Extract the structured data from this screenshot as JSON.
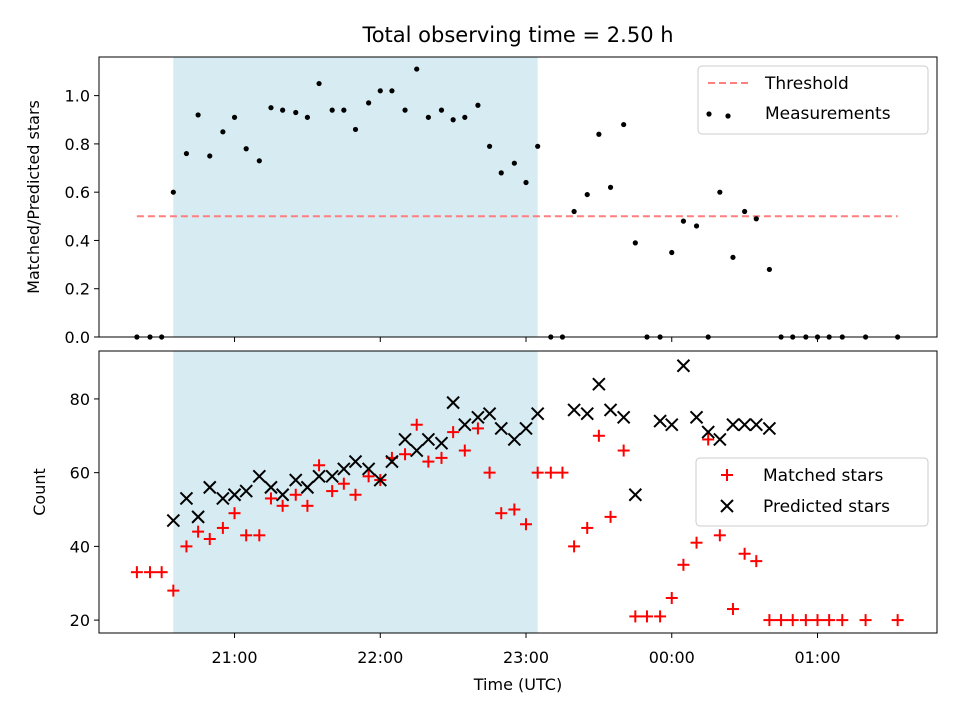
{
  "chart_data": [
    {
      "type": "scatter",
      "title": "Total observing time = 2.50 h",
      "ylabel": "Matched/Predicted stars",
      "xlabel": "",
      "ylim": [
        0,
        1.16
      ],
      "yticks": [
        0.0,
        0.2,
        0.4,
        0.6,
        0.8,
        1.0
      ],
      "ytick_labels": [
        "0.0",
        "0.2",
        "0.4",
        "0.6",
        "0.8",
        "1.0"
      ],
      "observing_window": {
        "start": 20.58,
        "end": 23.08,
        "color": "#add8e6"
      },
      "legend_position": "top-right",
      "threshold": {
        "name": "Threshold",
        "value": 0.5,
        "x_start": 20.33,
        "x_end": 25.55,
        "color": "#ff7f7f"
      },
      "series": [
        {
          "name": "Measurements",
          "color": "#000000",
          "x": [
            20.33,
            20.42,
            20.5,
            20.58,
            20.67,
            20.75,
            20.83,
            20.92,
            21.0,
            21.08,
            21.17,
            21.25,
            21.33,
            21.42,
            21.5,
            21.58,
            21.67,
            21.75,
            21.83,
            21.92,
            22.0,
            22.08,
            22.17,
            22.25,
            22.33,
            22.42,
            22.5,
            22.58,
            22.67,
            22.75,
            22.83,
            22.92,
            23.0,
            23.08,
            23.17,
            23.25,
            23.33,
            23.42,
            23.5,
            23.58,
            23.67,
            23.75,
            23.83,
            23.92,
            24.0,
            24.08,
            24.17,
            24.25,
            24.33,
            24.42,
            24.5,
            24.58,
            24.67,
            24.75,
            24.83,
            24.92,
            25.0,
            25.08,
            25.17,
            25.33,
            25.55
          ],
          "y": [
            0.0,
            0.0,
            0.0,
            0.6,
            0.76,
            0.92,
            0.75,
            0.85,
            0.91,
            0.78,
            0.73,
            0.95,
            0.94,
            0.93,
            0.91,
            1.05,
            0.94,
            0.94,
            0.86,
            0.97,
            1.02,
            1.02,
            0.94,
            1.11,
            0.91,
            0.94,
            0.9,
            0.91,
            0.96,
            0.79,
            0.68,
            0.72,
            0.64,
            0.79,
            0.0,
            0.0,
            0.52,
            0.59,
            0.84,
            0.62,
            0.88,
            0.39,
            0.0,
            0.0,
            0.35,
            0.48,
            0.46,
            0.0,
            0.6,
            0.33,
            0.52,
            0.49,
            0.28,
            0.0,
            0.0,
            0.0,
            0.0,
            0.0,
            0.0,
            0.0,
            0.0
          ]
        }
      ]
    },
    {
      "type": "scatter",
      "title": "",
      "ylabel": "Count",
      "xlabel": "Time (UTC)",
      "ylim": [
        16.5,
        93
      ],
      "yticks": [
        20,
        40,
        60,
        80
      ],
      "ytick_labels": [
        "20",
        "40",
        "60",
        "80"
      ],
      "xlim": [
        20.07,
        25.82
      ],
      "xticks": [
        21,
        22,
        23,
        24,
        25
      ],
      "xtick_labels": [
        "21:00",
        "22:00",
        "23:00",
        "00:00",
        "01:00"
      ],
      "observing_window": {
        "start": 20.58,
        "end": 23.08,
        "color": "#add8e6"
      },
      "legend_position": "center-right",
      "series": [
        {
          "name": "Matched stars",
          "color": "#ff0000",
          "marker": "+",
          "x": [
            20.33,
            20.42,
            20.5,
            20.58,
            20.67,
            20.75,
            20.83,
            20.92,
            21.0,
            21.08,
            21.17,
            21.25,
            21.33,
            21.42,
            21.5,
            21.58,
            21.67,
            21.75,
            21.83,
            21.92,
            22.0,
            22.08,
            22.17,
            22.25,
            22.33,
            22.42,
            22.5,
            22.58,
            22.67,
            22.75,
            22.83,
            22.92,
            23.0,
            23.08,
            23.17,
            23.25,
            23.33,
            23.42,
            23.5,
            23.58,
            23.67,
            23.75,
            23.83,
            23.92,
            24.0,
            24.08,
            24.17,
            24.25,
            24.33,
            24.42,
            24.5,
            24.58,
            24.67,
            24.75,
            24.83,
            24.92,
            25.0,
            25.08,
            25.17,
            25.33,
            25.55
          ],
          "y": [
            33,
            33,
            33,
            28,
            40,
            44,
            42,
            45,
            49,
            43,
            43,
            53,
            51,
            54,
            51,
            62,
            55,
            57,
            54,
            59,
            58,
            64,
            65,
            73,
            63,
            64,
            71,
            66,
            72,
            60,
            49,
            50,
            46,
            60,
            60,
            60,
            40,
            45,
            70,
            48,
            66,
            21,
            21,
            21,
            26,
            35,
            41,
            69,
            43,
            23,
            38,
            36,
            20,
            20,
            20,
            20,
            20,
            20,
            20,
            20,
            20
          ]
        },
        {
          "name": "Predicted stars",
          "color": "#000000",
          "marker": "x",
          "x": [
            20.58,
            20.67,
            20.75,
            20.83,
            20.92,
            21.0,
            21.08,
            21.17,
            21.25,
            21.33,
            21.42,
            21.5,
            21.58,
            21.67,
            21.75,
            21.83,
            21.92,
            22.0,
            22.08,
            22.17,
            22.25,
            22.33,
            22.42,
            22.5,
            22.58,
            22.67,
            22.75,
            22.83,
            22.92,
            23.0,
            23.08,
            23.33,
            23.42,
            23.5,
            23.58,
            23.67,
            23.75,
            23.92,
            24.0,
            24.08,
            24.17,
            24.25,
            24.33,
            24.42,
            24.5,
            24.58,
            24.67
          ],
          "y": [
            47,
            53,
            48,
            56,
            53,
            54,
            55,
            59,
            56,
            54,
            58,
            56,
            59,
            59,
            61,
            63,
            61,
            58,
            63,
            69,
            66,
            69,
            68,
            79,
            73,
            75,
            76,
            72,
            69,
            72,
            76,
            77,
            76,
            84,
            77,
            75,
            54,
            74,
            73,
            89,
            75,
            71,
            69,
            73,
            73,
            73,
            72
          ]
        }
      ]
    }
  ]
}
